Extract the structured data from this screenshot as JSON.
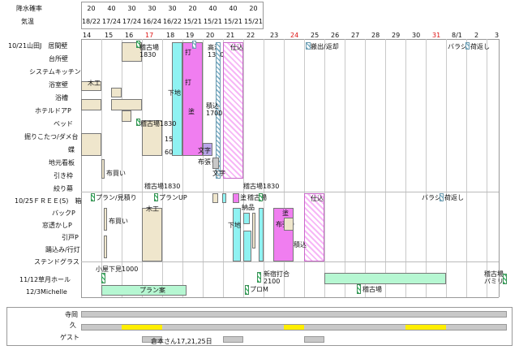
{
  "header": {
    "rain_label": "降水確率",
    "temp_label": "気温",
    "rain": [
      "20",
      "40",
      "30",
      "30",
      "30",
      "20",
      "40",
      "40",
      "20"
    ],
    "temps": [
      "18/22",
      "17/24",
      "17/24",
      "16/24",
      "16/22",
      "15/21",
      "15/21",
      "15/21",
      "15/21"
    ]
  },
  "dates": [
    "14",
    "15",
    "16",
    "17",
    "18",
    "19",
    "20",
    "21",
    "22",
    "23",
    "24",
    "25",
    "26",
    "27",
    "28",
    "29",
    "30",
    "31",
    "8/1",
    "2",
    "3"
  ],
  "red_dates": [
    "17",
    "24",
    "31"
  ],
  "rows": {
    "r1": "10/21山田J　居間壁",
    "r2": "台所壁",
    "r3": "システムキッチン",
    "r4": "浴室壁",
    "r5": "浴槽",
    "r6": "ホテルドアP",
    "r7": "ベッド",
    "r8": "掘りこたつ/ダメ台",
    "r9": "蝶",
    "r10": "地元看板",
    "r11": "引き枠",
    "r12": "絞り幕",
    "r13": "10/25ＦＲＥＥ(S)　箱",
    "r14": "バックP",
    "r15": "窓透かしP",
    "r16": "引戸P",
    "r17": "踊込み/行灯",
    "r18": "ステンドグラス",
    "r19": "11/12草月ホール",
    "r20": "12/3Michelle"
  },
  "labels": {
    "keiko1830a": "稽古場\n1830",
    "uchi": "打",
    "takatsu": "高津\n1300",
    "uchi2": "打",
    "shikomi": "仕込",
    "hashutsu": "搬出/返却",
    "barashi": "バラシ",
    "henkyaku": "荷返し",
    "mokko": "木工",
    "shitaji": "下地",
    "nuri": "塗",
    "tsumikomi1700": "積込\n1700",
    "v15": "15",
    "v60": "60",
    "moji": "文字",
    "nunobari": "布張り",
    "nunokai": "布買い",
    "keiko1830b": "稽古場1830",
    "keiko1830c": "稽古場1830",
    "plan_mitsumori": "プラン/見積り",
    "plan_up": "プランUP",
    "nuri2": "塗",
    "keiko2": "稽古場",
    "shikomi2": "仕込",
    "barashi2": "バラシ",
    "henkyaku2": "荷返し",
    "nunokai2": "布買い",
    "mokko2": "木工",
    "nohin": "納品",
    "shitaji2": "下地",
    "nuri3": "塗",
    "nunobari2": "布張り",
    "tsumikomi2": "積込",
    "koyashita": "小屋下見1000",
    "shinjuku": "新宿打合\n2100",
    "keiko3": "稽古場",
    "keiko_pamiri": "稽古場\nパミリ",
    "plan_an": "プラン案",
    "promo": "プロM"
  },
  "bottom": {
    "terama": "寺岡",
    "hisa": "久",
    "guest": "ゲスト",
    "guest_note": "倉本さん17,21,25日"
  }
}
